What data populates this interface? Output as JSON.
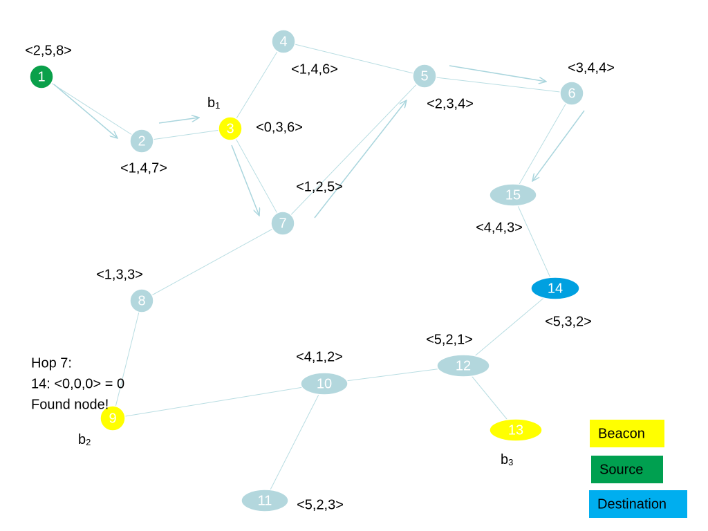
{
  "nodes": [
    {
      "id": "1",
      "vector": "<2,5,8>"
    },
    {
      "id": "2",
      "vector": "<1,4,7>"
    },
    {
      "id": "3",
      "vector": "<0,3,6>"
    },
    {
      "id": "4",
      "vector": "<1,4,6>"
    },
    {
      "id": "5",
      "vector": "<2,3,4>"
    },
    {
      "id": "6",
      "vector": "<3,4,4>"
    },
    {
      "id": "7",
      "vector": "<1,2,5>"
    },
    {
      "id": "8",
      "vector": "<1,3,3>"
    },
    {
      "id": "9"
    },
    {
      "id": "10",
      "vector": "<4,1,2>"
    },
    {
      "id": "11",
      "vector": "<5,2,3>"
    },
    {
      "id": "12",
      "vector": "<5,2,1>"
    },
    {
      "id": "13"
    },
    {
      "id": "14",
      "vector": "<5,3,2>"
    },
    {
      "id": "15",
      "vector": "<4,4,3>"
    }
  ],
  "beacons": [
    {
      "base": "b",
      "index": "1"
    },
    {
      "base": "b",
      "index": "2"
    },
    {
      "base": "b",
      "index": "3"
    }
  ],
  "annotation": [
    "Hop 7:",
    "14: <0,0,0> = 0",
    "Found node!"
  ],
  "legend": [
    "Beacon",
    "Source",
    "Destination"
  ]
}
